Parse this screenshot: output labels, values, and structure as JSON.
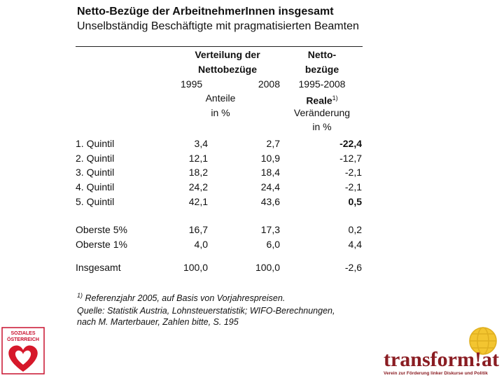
{
  "header": {
    "title": "Netto-Bezüge der ArbeitnehmerInnen insgesamt",
    "subtitle": "Unselbständig Beschäftigte mit pragmatisierten Beamten"
  },
  "table": {
    "columns": {
      "distribution": [
        "Verteilung der",
        "Nettobezüge"
      ],
      "years": [
        "1995",
        "2008"
      ],
      "unit": [
        "Anteile",
        "in %"
      ],
      "change": [
        "Netto-",
        "bezüge",
        "1995-2008",
        "Reale",
        "Veränderung",
        "in %"
      ],
      "change_note": "1)"
    },
    "rows": [
      [
        "1. Quintil",
        "3,4",
        "2,7",
        "-22,4"
      ],
      [
        "2. Quintil",
        "12,1",
        "10,9",
        "-12,7"
      ],
      [
        "3. Quintil",
        "18,2",
        "18,4",
        "-2,1"
      ],
      [
        "4. Quintil",
        "24,2",
        "24,4",
        "-2,1"
      ],
      [
        "5. Quintil",
        "42,1",
        "43,6",
        "0,5"
      ],
      [
        "Oberste 5%",
        "16,7",
        "17,3",
        "0,2"
      ],
      [
        "Oberste 1%",
        "4,0",
        "6,0",
        "4,4"
      ],
      [
        "Insgesamt",
        "100,0",
        "100,0",
        "-2,6"
      ]
    ]
  },
  "footnote": {
    "mark": "1)",
    "text": "Referenzjahr 2005, auf Basis von Vorjahrespreisen.",
    "source": [
      "Quelle: Statistik Austria, Lohnsteuerstatistik; WIFO-Berechnungen,",
      "nach M. Marterbauer, Zahlen bitte, S. 195"
    ]
  },
  "logos": {
    "left": [
      "SOZIALES",
      "ÖSTERREICH"
    ],
    "right": "transform!at",
    "right_tagline": "Verein zur Förderung linker Diskurse und Politik"
  }
}
